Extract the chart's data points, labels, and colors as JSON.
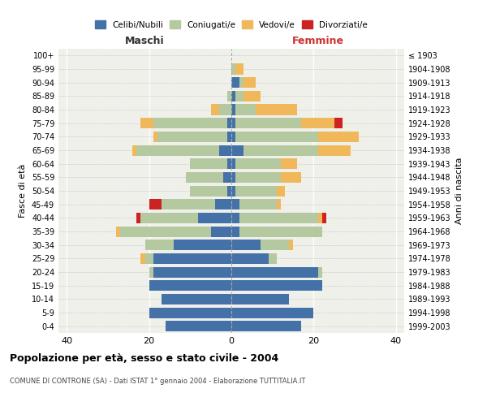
{
  "age_groups": [
    "0-4",
    "5-9",
    "10-14",
    "15-19",
    "20-24",
    "25-29",
    "30-34",
    "35-39",
    "40-44",
    "45-49",
    "50-54",
    "55-59",
    "60-64",
    "65-69",
    "70-74",
    "75-79",
    "80-84",
    "85-89",
    "90-94",
    "95-99",
    "100+"
  ],
  "birth_years": [
    "1999-2003",
    "1994-1998",
    "1989-1993",
    "1984-1988",
    "1979-1983",
    "1974-1978",
    "1969-1973",
    "1964-1968",
    "1959-1963",
    "1954-1958",
    "1949-1953",
    "1944-1948",
    "1939-1943",
    "1934-1938",
    "1929-1933",
    "1924-1928",
    "1919-1923",
    "1914-1918",
    "1909-1913",
    "1904-1908",
    "≤ 1903"
  ],
  "maschi": {
    "celibi": [
      16,
      20,
      17,
      20,
      19,
      19,
      14,
      5,
      8,
      4,
      1,
      2,
      1,
      3,
      1,
      1,
      0,
      0,
      0,
      0,
      0
    ],
    "coniugati": [
      0,
      0,
      0,
      0,
      1,
      2,
      7,
      22,
      14,
      13,
      9,
      9,
      9,
      20,
      17,
      18,
      3,
      1,
      0,
      0,
      0
    ],
    "vedovi": [
      0,
      0,
      0,
      0,
      0,
      1,
      0,
      1,
      0,
      0,
      0,
      0,
      0,
      1,
      1,
      3,
      2,
      0,
      0,
      0,
      0
    ],
    "divorziati": [
      0,
      0,
      0,
      0,
      0,
      0,
      0,
      0,
      1,
      3,
      0,
      0,
      0,
      0,
      0,
      0,
      0,
      0,
      0,
      0,
      0
    ]
  },
  "femmine": {
    "nubili": [
      17,
      20,
      14,
      22,
      21,
      9,
      7,
      2,
      2,
      2,
      1,
      1,
      1,
      3,
      1,
      1,
      1,
      1,
      2,
      0,
      0
    ],
    "coniugate": [
      0,
      0,
      0,
      0,
      1,
      2,
      7,
      20,
      19,
      9,
      10,
      11,
      11,
      18,
      20,
      16,
      5,
      2,
      1,
      1,
      0
    ],
    "vedove": [
      0,
      0,
      0,
      0,
      0,
      0,
      1,
      0,
      1,
      1,
      2,
      5,
      4,
      8,
      10,
      8,
      10,
      4,
      3,
      2,
      0
    ],
    "divorziate": [
      0,
      0,
      0,
      0,
      0,
      0,
      0,
      0,
      1,
      0,
      0,
      0,
      0,
      0,
      0,
      2,
      0,
      0,
      0,
      0,
      0
    ]
  },
  "colors": {
    "celibi": "#4472a8",
    "coniugati": "#b5c9a0",
    "vedovi": "#f0b85a",
    "divorziati": "#cc2222"
  },
  "xlim": 42,
  "title": "Popolazione per età, sesso e stato civile - 2004",
  "subtitle": "COMUNE DI CONTRONE (SA) - Dati ISTAT 1° gennaio 2004 - Elaborazione TUTTITALIA.IT",
  "ylabel_left": "Fasce di età",
  "ylabel_right": "Anni di nascita",
  "xlabel_maschi": "Maschi",
  "xlabel_femmine": "Femmine",
  "legend_labels": [
    "Celibi/Nubili",
    "Coniugati/e",
    "Vedovi/e",
    "Divorziati/e"
  ],
  "bg_color": "#f0f0eb",
  "plot_bg": "#f0f0eb"
}
